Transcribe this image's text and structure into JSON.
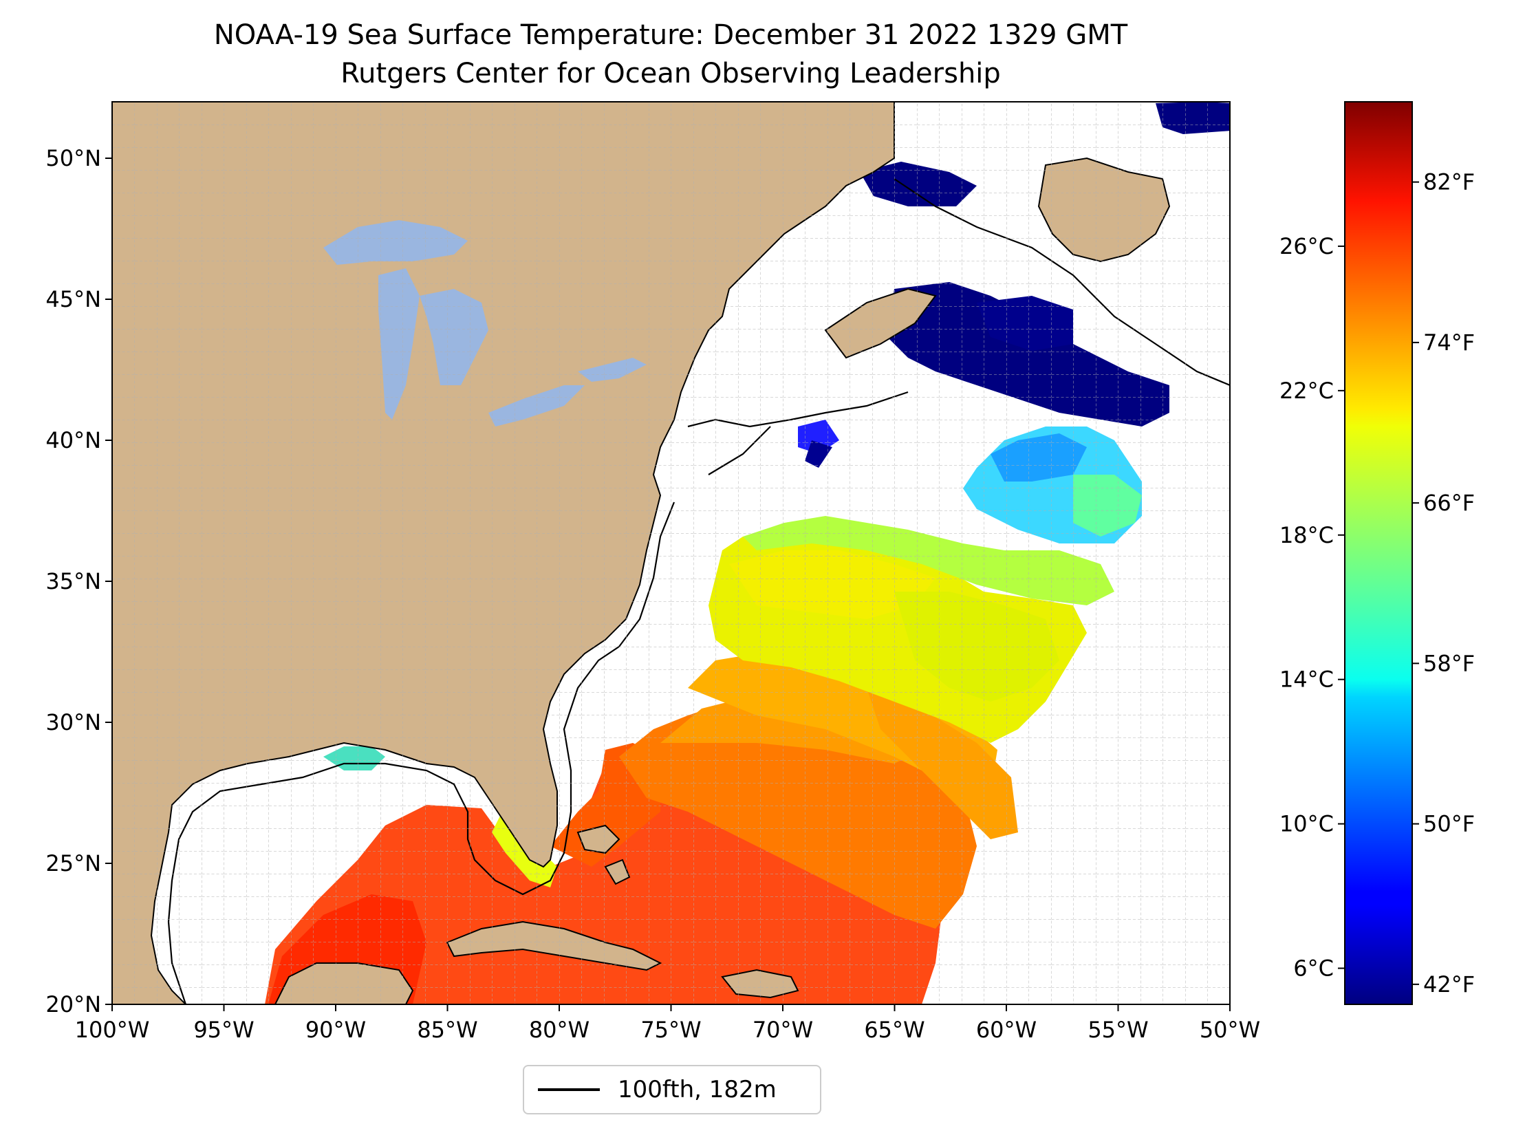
{
  "title": "NOAA-19 Sea Surface Temperature: December 31 2022 1329 GMT",
  "subtitle": "Rutgers Center for Ocean Observing Leadership",
  "map": {
    "projection": "plate-carree",
    "lon_range": [
      -100,
      -50
    ],
    "lat_range": [
      20,
      52
    ],
    "land_color": "#d2b48c",
    "lake_color": "#9ab6e0",
    "no_data_color": "#ffffff",
    "grid": true,
    "x_tick_labels": [
      "100°W",
      "95°W",
      "90°W",
      "85°W",
      "80°W",
      "75°W",
      "70°W",
      "65°W",
      "60°W",
      "55°W",
      "50°W"
    ],
    "y_tick_labels": [
      "20°N",
      "25°N",
      "30°N",
      "35°N",
      "40°N",
      "45°N",
      "50°N"
    ]
  },
  "legend": {
    "label": "100fth, 182m",
    "line_color": "#000000",
    "placement": "bottom-center"
  },
  "colorbar": {
    "colormap": "jet",
    "celsius_labels": [
      "6°C",
      "10°C",
      "14°C",
      "18°C",
      "22°C",
      "26°C"
    ],
    "fahrenheit_labels": [
      "42°F",
      "50°F",
      "58°F",
      "66°F",
      "74°F",
      "82°F"
    ],
    "range_celsius": [
      5.0,
      30.0
    ]
  }
}
